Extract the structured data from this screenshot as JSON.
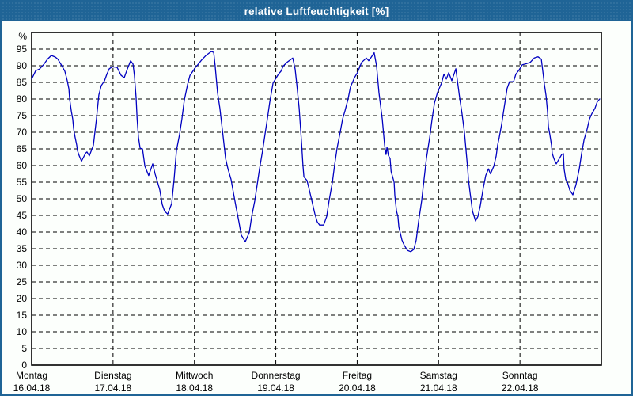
{
  "window": {
    "title": "relative Luftfeuchtigkeit [%]"
  },
  "colors": {
    "titlebar_bg": "#1F6496",
    "window_border": "#1F6496",
    "content_bg": "#FCFFFC",
    "grid_color": "#000000",
    "line_color": "#0000C0",
    "title_text": "#FFFFFF",
    "label_text": "#000000"
  },
  "chart_data": {
    "type": "line",
    "title": "relative Luftfeuchtigkeit [%]",
    "ylabel": "%",
    "xlabel": "",
    "ylim": [
      0,
      100
    ],
    "ytick_step": 5,
    "yticks": [
      0,
      5,
      10,
      15,
      20,
      25,
      30,
      35,
      40,
      45,
      50,
      55,
      60,
      65,
      70,
      75,
      80,
      85,
      90,
      95
    ],
    "grid": "dashed",
    "legend": "none",
    "x_unit": "hours since Monday 00:00",
    "x_total_hours": 168,
    "x_labels": [
      {
        "day": "Montag",
        "date": "16.04.18"
      },
      {
        "day": "Dienstag",
        "date": "17.04.18"
      },
      {
        "day": "Mittwoch",
        "date": "18.04.18"
      },
      {
        "day": "Donnerstag",
        "date": "19.04.18"
      },
      {
        "day": "Freitag",
        "date": "20.04.18"
      },
      {
        "day": "Samstag",
        "date": "21.04.18"
      },
      {
        "day": "Sonntag",
        "date": "22.04.18"
      }
    ],
    "series": [
      {
        "name": "relative Luftfeuchtigkeit",
        "color": "#0000C0",
        "points": [
          [
            0,
            86
          ],
          [
            1.2,
            88.5
          ],
          [
            2.3,
            89
          ],
          [
            3.5,
            90.3
          ],
          [
            4.7,
            92
          ],
          [
            5.8,
            93.1
          ],
          [
            7,
            92.6
          ],
          [
            7.7,
            92
          ],
          [
            8.9,
            90
          ],
          [
            9.8,
            88.3
          ],
          [
            10.5,
            85.5
          ],
          [
            11,
            83
          ],
          [
            11.2,
            80
          ],
          [
            11.7,
            76.4
          ],
          [
            12.1,
            74
          ],
          [
            12.4,
            71
          ],
          [
            12.8,
            68.5
          ],
          [
            13.3,
            66.1
          ],
          [
            13.5,
            64.5
          ],
          [
            14,
            63
          ],
          [
            14.7,
            61.3
          ],
          [
            15.9,
            63.7
          ],
          [
            16.3,
            64.1
          ],
          [
            17,
            62.9
          ],
          [
            18.2,
            66.1
          ],
          [
            19.1,
            74
          ],
          [
            19.8,
            81.2
          ],
          [
            20.5,
            84
          ],
          [
            21.5,
            85.5
          ],
          [
            22.2,
            87.5
          ],
          [
            22.9,
            89.1
          ],
          [
            23.8,
            89.7
          ],
          [
            25.2,
            89.5
          ],
          [
            26.4,
            87.1
          ],
          [
            27.3,
            86.4
          ],
          [
            28.2,
            89
          ],
          [
            29.2,
            91.5
          ],
          [
            29.9,
            90.5
          ],
          [
            30.3,
            87
          ],
          [
            30.8,
            80.4
          ],
          [
            31.1,
            74
          ],
          [
            31.5,
            68.5
          ],
          [
            32,
            65.2
          ],
          [
            32.7,
            65
          ],
          [
            33.4,
            59.8
          ],
          [
            34.5,
            57
          ],
          [
            35.7,
            60.5
          ],
          [
            36.4,
            57.5
          ],
          [
            36.9,
            55.8
          ],
          [
            37.8,
            52.6
          ],
          [
            38.5,
            48.3
          ],
          [
            39.2,
            46.3
          ],
          [
            40.1,
            45.4
          ],
          [
            41.3,
            48.6
          ],
          [
            42,
            55.8
          ],
          [
            42.7,
            64.5
          ],
          [
            43.6,
            69.3
          ],
          [
            44.3,
            74
          ],
          [
            45,
            79.6
          ],
          [
            46,
            84.4
          ],
          [
            46.7,
            87.1
          ],
          [
            48.3,
            89.5
          ],
          [
            49,
            90.3
          ],
          [
            50.2,
            91.8
          ],
          [
            51.3,
            93
          ],
          [
            53,
            94.3
          ],
          [
            53.7,
            94
          ],
          [
            54.1,
            90
          ],
          [
            54.8,
            82
          ],
          [
            55.5,
            77.2
          ],
          [
            56.5,
            68.5
          ],
          [
            57.2,
            62.1
          ],
          [
            57.9,
            59
          ],
          [
            58.8,
            55.8
          ],
          [
            59.5,
            51.8
          ],
          [
            60.2,
            47.9
          ],
          [
            61.1,
            43.1
          ],
          [
            61.8,
            39.1
          ],
          [
            63,
            37.1
          ],
          [
            64.2,
            39.9
          ],
          [
            64.9,
            44.7
          ],
          [
            65.8,
            49.4
          ],
          [
            66.5,
            54.2
          ],
          [
            67.2,
            59
          ],
          [
            68.1,
            64.5
          ],
          [
            68.8,
            69.3
          ],
          [
            69.5,
            74
          ],
          [
            70.2,
            79
          ],
          [
            71.2,
            84.8
          ],
          [
            72.8,
            87.5
          ],
          [
            73.5,
            88.3
          ],
          [
            74.2,
            89.9
          ],
          [
            75.4,
            91.1
          ],
          [
            77,
            92.3
          ],
          [
            77.7,
            89
          ],
          [
            78.2,
            84.4
          ],
          [
            78.9,
            77.2
          ],
          [
            79.6,
            66.9
          ],
          [
            80,
            60
          ],
          [
            80.3,
            56.6
          ],
          [
            81.2,
            55.5
          ],
          [
            81.9,
            52.6
          ],
          [
            82.8,
            48.6
          ],
          [
            83.5,
            45.5
          ],
          [
            84.2,
            43.1
          ],
          [
            84.9,
            42.1
          ],
          [
            86.1,
            42.1
          ],
          [
            87,
            44.7
          ],
          [
            87.7,
            49.4
          ],
          [
            88.7,
            55
          ],
          [
            89.4,
            60.5
          ],
          [
            90.1,
            65.3
          ],
          [
            91,
            70.1
          ],
          [
            91.7,
            74
          ],
          [
            92.4,
            76.4
          ],
          [
            93.3,
            80
          ],
          [
            94,
            83.6
          ],
          [
            95.2,
            86.4
          ],
          [
            96.1,
            88
          ],
          [
            97.3,
            91
          ],
          [
            98.7,
            92.3
          ],
          [
            99.4,
            91.5
          ],
          [
            100.1,
            92.5
          ],
          [
            101,
            93.9
          ],
          [
            101.7,
            90
          ],
          [
            102.4,
            82
          ],
          [
            103.4,
            74
          ],
          [
            104.1,
            66.1
          ],
          [
            104.5,
            63.3
          ],
          [
            104.8,
            65.5
          ],
          [
            105.2,
            63
          ],
          [
            105.7,
            62.1
          ],
          [
            106,
            58.2
          ],
          [
            106.9,
            55
          ],
          [
            107.1,
            51
          ],
          [
            107.6,
            46.3
          ],
          [
            108,
            44.7
          ],
          [
            108.3,
            41.5
          ],
          [
            109.2,
            37.6
          ],
          [
            109.9,
            36
          ],
          [
            110.8,
            34.5
          ],
          [
            111.8,
            34.1
          ],
          [
            112.7,
            34.8
          ],
          [
            113.4,
            37.6
          ],
          [
            114.1,
            43.1
          ],
          [
            115,
            49.4
          ],
          [
            115.7,
            55.8
          ],
          [
            116.4,
            62.1
          ],
          [
            117.4,
            68.5
          ],
          [
            118.1,
            74
          ],
          [
            118.8,
            78.8
          ],
          [
            119.7,
            82
          ],
          [
            120.9,
            84.8
          ],
          [
            121.6,
            87.5
          ],
          [
            122.3,
            86
          ],
          [
            123,
            87.9
          ],
          [
            123.9,
            85.5
          ],
          [
            125.1,
            89.1
          ],
          [
            126.2,
            80.4
          ],
          [
            126.9,
            75.6
          ],
          [
            127.6,
            70.1
          ],
          [
            128.6,
            59
          ],
          [
            128.8,
            55.8
          ],
          [
            129.3,
            51.8
          ],
          [
            129.7,
            48.6
          ],
          [
            130,
            46.3
          ],
          [
            130.9,
            43.3
          ],
          [
            131.6,
            44.7
          ],
          [
            132.3,
            47.9
          ],
          [
            133.2,
            53.4
          ],
          [
            133.9,
            57
          ],
          [
            134.7,
            59
          ],
          [
            135.3,
            57.5
          ],
          [
            136.3,
            59.8
          ],
          [
            137,
            62.9
          ],
          [
            137.4,
            66.1
          ],
          [
            137.9,
            68.5
          ],
          [
            138.6,
            72.4
          ],
          [
            139.3,
            77.2
          ],
          [
            139.8,
            80.4
          ],
          [
            140.2,
            83.2
          ],
          [
            140.9,
            85.2
          ],
          [
            142.1,
            85.2
          ],
          [
            142.8,
            87.5
          ],
          [
            143.7,
            88.7
          ],
          [
            144.7,
            90.3
          ],
          [
            145.8,
            90.6
          ],
          [
            147,
            91
          ],
          [
            148.2,
            92.3
          ],
          [
            149.3,
            92.7
          ],
          [
            150.3,
            92
          ],
          [
            150.9,
            87
          ],
          [
            151.2,
            84.4
          ],
          [
            151.7,
            81
          ],
          [
            152.1,
            76.4
          ],
          [
            152.4,
            71.7
          ],
          [
            152.8,
            69.3
          ],
          [
            153.3,
            66.1
          ],
          [
            153.5,
            63.7
          ],
          [
            154,
            62.1
          ],
          [
            154.7,
            60.5
          ],
          [
            155.6,
            62.1
          ],
          [
            156.3,
            63.3
          ],
          [
            156.8,
            63.6
          ],
          [
            157,
            59
          ],
          [
            157.5,
            55.8
          ],
          [
            158,
            55
          ],
          [
            158.7,
            52.6
          ],
          [
            159.6,
            51.2
          ],
          [
            160.5,
            54.2
          ],
          [
            161.5,
            59
          ],
          [
            162.2,
            63.7
          ],
          [
            162.9,
            67.7
          ],
          [
            163.8,
            70.9
          ],
          [
            164.5,
            74
          ],
          [
            165.2,
            75.6
          ],
          [
            166.1,
            77.2
          ],
          [
            166.8,
            79.2
          ],
          [
            167.5,
            80
          ]
        ]
      }
    ]
  }
}
